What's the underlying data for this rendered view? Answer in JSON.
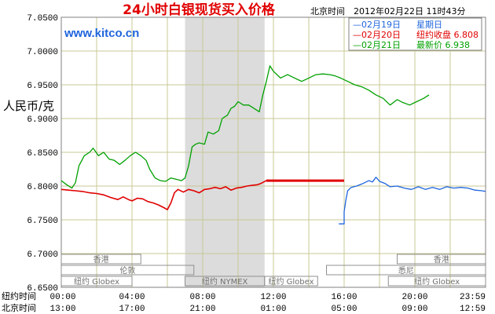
{
  "chart_data": {
    "type": "line",
    "title": "24小时白银现货买入价格",
    "timestamp": "北京时间　2012年02月22日 11时43分",
    "website": "www.kitco.cn",
    "ylabel": "人民币/克",
    "ylim": [
      6.65,
      7.05
    ],
    "y_ticks": [
      "7.0500",
      "7.0000",
      "6.9500",
      "6.9000",
      "6.8500",
      "6.8000",
      "6.7500",
      "6.7000",
      "6.6500"
    ],
    "x_label_ny": "纽约时间",
    "x_label_bj": "北京时间",
    "x_ticks_ny": [
      "00:00",
      "04:00",
      "08:00",
      "12:00",
      "16:00",
      "20:00",
      "23:59"
    ],
    "x_ticks_bj": [
      "13:00",
      "17:00",
      "21:00",
      "01:00",
      "05:00",
      "09:00",
      "12:59"
    ],
    "xlim_hours": [
      0,
      24
    ],
    "shaded_session_hours": [
      7,
      11.5
    ],
    "legend": [
      {
        "name": "02月19日",
        "note": "星期日",
        "value": "",
        "color": "#1e64dc"
      },
      {
        "name": "02月20日",
        "note": "纽约收盘",
        "value": "6.808",
        "color": "#e00000"
      },
      {
        "name": "02月21日",
        "note": "最新价",
        "value": "6.938",
        "color": "#00a000"
      }
    ],
    "sessions": [
      {
        "label": "香港",
        "row": 0,
        "start_h": 0,
        "end_h": 4.5
      },
      {
        "label": "伦敦",
        "row": 1,
        "start_h": 0,
        "end_h": 7.5
      },
      {
        "label": "纽约 Globex",
        "row": 2,
        "start_h": 0,
        "end_h": 4
      },
      {
        "label": "纽约 NYMEX",
        "row": 2,
        "start_h": 7,
        "end_h": 11.5
      },
      {
        "label": "纽约 Globex",
        "row": 2,
        "start_h": 11.5,
        "end_h": 14.5
      },
      {
        "label": "香港",
        "row": 0,
        "start_h": 19,
        "end_h": 24
      },
      {
        "label": "悉尼",
        "row": 1,
        "start_h": 15,
        "end_h": 24
      },
      {
        "label": "纽约 Globex",
        "row": 2,
        "start_h": 18.5,
        "end_h": 24
      }
    ],
    "series": [
      {
        "name": "02月19日",
        "color": "#1e64dc",
        "points": [
          [
            15.7,
            6.744
          ],
          [
            16.0,
            6.744
          ],
          [
            16.0,
            6.762
          ],
          [
            16.1,
            6.78
          ],
          [
            16.2,
            6.793
          ],
          [
            16.4,
            6.798
          ],
          [
            16.7,
            6.8
          ],
          [
            17.0,
            6.803
          ],
          [
            17.4,
            6.808
          ],
          [
            17.6,
            6.806
          ],
          [
            17.8,
            6.813
          ],
          [
            18.0,
            6.807
          ],
          [
            18.3,
            6.804
          ],
          [
            18.6,
            6.799
          ],
          [
            19.0,
            6.8
          ],
          [
            19.4,
            6.797
          ],
          [
            19.8,
            6.795
          ],
          [
            20.2,
            6.799
          ],
          [
            20.6,
            6.795
          ],
          [
            21.0,
            6.798
          ],
          [
            21.4,
            6.795
          ],
          [
            21.8,
            6.799
          ],
          [
            22.2,
            6.797
          ],
          [
            22.6,
            6.798
          ],
          [
            23.0,
            6.797
          ],
          [
            23.4,
            6.794
          ],
          [
            23.8,
            6.793
          ],
          [
            24.0,
            6.792
          ]
        ]
      },
      {
        "name": "02月20日",
        "color": "#e00000",
        "points": [
          [
            0.0,
            6.795
          ],
          [
            0.4,
            6.794
          ],
          [
            0.8,
            6.793
          ],
          [
            1.2,
            6.792
          ],
          [
            1.6,
            6.79
          ],
          [
            2.0,
            6.789
          ],
          [
            2.4,
            6.787
          ],
          [
            2.8,
            6.783
          ],
          [
            3.2,
            6.78
          ],
          [
            3.5,
            6.784
          ],
          [
            3.8,
            6.78
          ],
          [
            4.0,
            6.778
          ],
          [
            4.3,
            6.782
          ],
          [
            4.6,
            6.781
          ],
          [
            4.9,
            6.777
          ],
          [
            5.2,
            6.775
          ],
          [
            5.5,
            6.772
          ],
          [
            5.8,
            6.768
          ],
          [
            6.0,
            6.765
          ],
          [
            6.2,
            6.775
          ],
          [
            6.4,
            6.79
          ],
          [
            6.6,
            6.795
          ],
          [
            6.9,
            6.791
          ],
          [
            7.2,
            6.795
          ],
          [
            7.5,
            6.793
          ],
          [
            7.8,
            6.79
          ],
          [
            8.1,
            6.795
          ],
          [
            8.4,
            6.796
          ],
          [
            8.7,
            6.798
          ],
          [
            9.0,
            6.796
          ],
          [
            9.3,
            6.799
          ],
          [
            9.6,
            6.794
          ],
          [
            9.9,
            6.797
          ],
          [
            10.2,
            6.798
          ],
          [
            10.5,
            6.8
          ],
          [
            10.8,
            6.801
          ],
          [
            11.1,
            6.802
          ],
          [
            11.3,
            6.804
          ],
          [
            11.6,
            6.808
          ],
          [
            12.0,
            6.808
          ],
          [
            13.0,
            6.808
          ],
          [
            14.0,
            6.808
          ],
          [
            15.0,
            6.808
          ],
          [
            15.7,
            6.808
          ],
          [
            16.0,
            6.808
          ]
        ]
      },
      {
        "name": "02月21日",
        "color": "#00a000",
        "points": [
          [
            0.0,
            6.808
          ],
          [
            0.3,
            6.802
          ],
          [
            0.6,
            6.797
          ],
          [
            0.8,
            6.805
          ],
          [
            1.0,
            6.83
          ],
          [
            1.3,
            6.845
          ],
          [
            1.6,
            6.85
          ],
          [
            1.8,
            6.856
          ],
          [
            2.1,
            6.845
          ],
          [
            2.4,
            6.85
          ],
          [
            2.7,
            6.84
          ],
          [
            3.0,
            6.838
          ],
          [
            3.3,
            6.832
          ],
          [
            3.6,
            6.838
          ],
          [
            3.9,
            6.845
          ],
          [
            4.2,
            6.85
          ],
          [
            4.5,
            6.845
          ],
          [
            4.8,
            6.838
          ],
          [
            5.0,
            6.825
          ],
          [
            5.3,
            6.812
          ],
          [
            5.6,
            6.808
          ],
          [
            5.9,
            6.807
          ],
          [
            6.2,
            6.812
          ],
          [
            6.5,
            6.81
          ],
          [
            6.8,
            6.808
          ],
          [
            7.0,
            6.812
          ],
          [
            7.2,
            6.83
          ],
          [
            7.4,
            6.858
          ],
          [
            7.6,
            6.862
          ],
          [
            7.8,
            6.864
          ],
          [
            8.1,
            6.862
          ],
          [
            8.3,
            6.88
          ],
          [
            8.6,
            6.877
          ],
          [
            8.9,
            6.882
          ],
          [
            9.1,
            6.9
          ],
          [
            9.4,
            6.905
          ],
          [
            9.6,
            6.915
          ],
          [
            9.8,
            6.918
          ],
          [
            10.0,
            6.925
          ],
          [
            10.3,
            6.92
          ],
          [
            10.6,
            6.92
          ],
          [
            10.9,
            6.915
          ],
          [
            11.2,
            6.91
          ],
          [
            11.4,
            6.935
          ],
          [
            11.6,
            6.955
          ],
          [
            11.8,
            6.978
          ],
          [
            12.0,
            6.97
          ],
          [
            12.4,
            6.96
          ],
          [
            12.8,
            6.965
          ],
          [
            13.2,
            6.96
          ],
          [
            13.6,
            6.955
          ],
          [
            14.0,
            6.96
          ],
          [
            14.4,
            6.965
          ],
          [
            14.8,
            6.966
          ],
          [
            15.2,
            6.965
          ],
          [
            15.5,
            6.963
          ],
          [
            15.8,
            6.96
          ],
          [
            16.2,
            6.955
          ],
          [
            16.6,
            6.95
          ],
          [
            17.0,
            6.947
          ],
          [
            17.4,
            6.942
          ],
          [
            17.8,
            6.935
          ],
          [
            18.2,
            6.93
          ],
          [
            18.6,
            6.92
          ],
          [
            19.0,
            6.928
          ],
          [
            19.3,
            6.924
          ],
          [
            19.7,
            6.92
          ],
          [
            20.1,
            6.925
          ],
          [
            20.5,
            6.93
          ],
          [
            20.8,
            6.935
          ]
        ]
      }
    ]
  }
}
